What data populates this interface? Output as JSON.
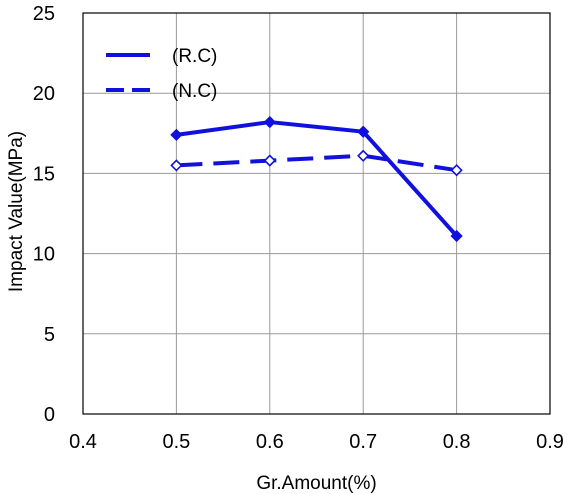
{
  "chart_data": {
    "type": "line",
    "title": "",
    "xlabel": "Gr.Amount(%)",
    "ylabel": "Impact Value(MPa)",
    "xlim": [
      0.4,
      0.9
    ],
    "ylim": [
      0,
      25
    ],
    "xticks": [
      0.4,
      0.5,
      0.6,
      0.7,
      0.8,
      0.9
    ],
    "yticks": [
      0,
      5,
      10,
      15,
      20,
      25
    ],
    "xtick_labels": [
      "0.4",
      "0.5",
      "0.6",
      "0.7",
      "0.8",
      "0.9"
    ],
    "ytick_labels": [
      "0",
      "5",
      "10",
      "15",
      "20",
      "25"
    ],
    "grid": true,
    "legend_position": "top-left",
    "series": [
      {
        "name": "(R.C)",
        "style": "solid",
        "marker": "diamond-filled",
        "color": "#1111dd",
        "x": [
          0.5,
          0.6,
          0.7,
          0.8
        ],
        "y": [
          17.4,
          18.2,
          17.6,
          11.1
        ]
      },
      {
        "name": "(N.C)",
        "style": "dashed",
        "marker": "diamond-open",
        "color": "#1111dd",
        "x": [
          0.5,
          0.6,
          0.7,
          0.8
        ],
        "y": [
          15.5,
          15.8,
          16.1,
          15.2
        ]
      }
    ]
  }
}
